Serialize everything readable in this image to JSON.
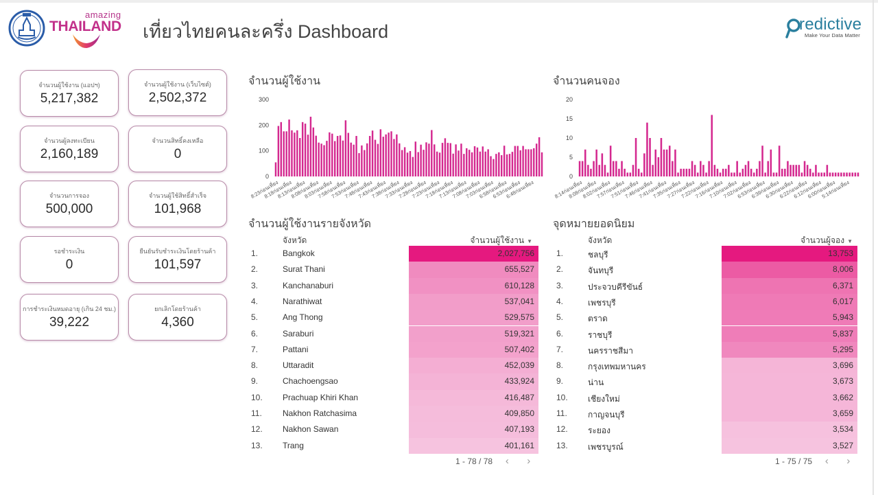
{
  "header": {
    "title": "เที่ยวไทยคนละครึ่ง Dashboard",
    "amazing_small": "amazing",
    "amazing_big": "THAILAND",
    "predictive_name": "redictive",
    "predictive_tagline": "Make Your Data Matter"
  },
  "colors": {
    "accent": "#d81b86",
    "bar": "#d4288f",
    "card_border": "#b78aa8",
    "heat_max": "#e5197f",
    "heat_min": "#f6c3df"
  },
  "kpis": [
    {
      "label": "จำนวนผู้ใช้งาน (แอปฯ)",
      "value": "5,217,382"
    },
    {
      "label": "จำนวนผู้ใช้งาน (เว็บไซต์)",
      "value": "2,502,372"
    },
    {
      "label": "จำนวนผู้ลงทะเบียน",
      "value": "2,160,189"
    },
    {
      "label": "จำนวนสิทธิ์คงเหลือ",
      "value": "0"
    },
    {
      "label": "จำนวนการจอง",
      "value": "500,000"
    },
    {
      "label": "จำนวนผู้ใช้สิทธิ์สำเร็จ",
      "value": "101,968"
    },
    {
      "label": "รอชำระเงิน",
      "value": "0"
    },
    {
      "label": "ยืนยันรับชำระเงินโดยร้านค้า",
      "value": "101,597"
    },
    {
      "label": "การชำระเงินหมดอายุ (เกิน 24 ชม.)",
      "value": "39,222"
    },
    {
      "label": "ยกเลิกโดยร้านค้า",
      "value": "4,360"
    }
  ],
  "chart_data": [
    {
      "type": "bar",
      "title": "จำนวนผู้ใช้งาน",
      "xlabel": "",
      "ylabel": "",
      "ylim": [
        0,
        300
      ],
      "yticks": [
        0,
        100,
        200,
        300
      ],
      "grid": false,
      "xtick_labels": [
        "8:23ก่อนเที่ยง",
        "8:18ก่อนเที่ยง",
        "8:13ก่อนเที่ยง",
        "8:08ก่อนเที่ยง",
        "8:03ก่อนเที่ยง",
        "7:58ก่อนเที่ยง",
        "7:53ก่อนเที่ยง",
        "7:48ก่อนเที่ยง",
        "7:43ก่อนเที่ยง",
        "7:38ก่อนเที่ยง",
        "7:33ก่อนเที่ยง",
        "7:28ก่อนเที่ยง",
        "7:23ก่อนเที่ยง",
        "7:18ก่อนเที่ยง",
        "7:13ก่อนเที่ยง",
        "7:08ก่อนเที่ยง",
        "7:03ก่อนเที่ยง",
        "6:58ก่อนเที่ยง",
        "6:53ก่อนเที่ยง",
        "6:48ก่อนเที่ยง"
      ],
      "values": [
        55,
        197,
        212,
        176,
        176,
        222,
        180,
        171,
        180,
        150,
        212,
        206,
        163,
        233,
        191,
        159,
        132,
        128,
        122,
        139,
        172,
        167,
        138,
        158,
        160,
        140,
        219,
        170,
        132,
        124,
        158,
        91,
        121,
        103,
        129,
        158,
        179,
        143,
        127,
        184,
        155,
        164,
        171,
        176,
        146,
        164,
        129,
        103,
        114,
        93,
        99,
        76,
        136,
        95,
        124,
        104,
        133,
        128,
        181,
        125,
        97,
        93,
        131,
        149,
        131,
        130,
        89,
        125,
        101,
        128,
        88,
        110,
        104,
        94,
        118,
        113,
        97,
        117,
        97,
        106,
        79,
        68,
        88,
        94,
        83,
        120,
        86,
        88,
        96,
        119,
        119,
        102,
        119,
        106,
        106,
        106,
        110,
        128,
        153,
        94
      ]
    },
    {
      "type": "bar",
      "title": "จำนวนคนจอง",
      "xlabel": "",
      "ylabel": "",
      "ylim": [
        0,
        20
      ],
      "yticks": [
        0,
        5,
        10,
        15,
        20
      ],
      "grid": false,
      "xtick_labels": [
        "8:14ก่อนเที่ยง",
        "8:08ก่อนเที่ยง",
        "8:02ก่อนเที่ยง",
        "7:57ก่อนเที่ยง",
        "7:51ก่อนเที่ยง",
        "7:46ก่อนเที่ยง",
        "7:41ก่อนเที่ยง",
        "7:35ก่อนเที่ยง",
        "7:27ก่อนเที่ยง",
        "7:22ก่อนเที่ยง",
        "7:16ก่อนเที่ยง",
        "7:10ก่อนเที่ยง",
        "7:02ก่อนเที่ยง",
        "6:53ก่อนเที่ยง",
        "6:39ก่อนเที่ยง",
        "6:30ก่อนเที่ยง",
        "6:22ก่อนเที่ยง",
        "6:12ก่อนเที่ยง",
        "6:00ก่อนเที่ยง",
        "5:14ก่อนเที่ยง"
      ],
      "values": [
        4,
        4,
        7,
        3,
        2,
        4,
        7,
        3,
        6,
        3,
        1,
        8,
        4,
        4,
        2,
        4,
        2,
        1,
        1,
        3,
        10,
        2,
        1,
        6,
        14,
        10,
        3,
        7,
        5,
        10,
        7,
        7,
        8,
        4,
        7,
        1,
        2,
        2,
        2,
        2,
        4,
        3,
        1,
        4,
        3,
        1,
        4,
        16,
        3,
        2,
        1,
        2,
        2,
        3,
        1,
        1,
        4,
        1,
        2,
        3,
        4,
        2,
        1,
        2,
        4,
        8,
        1,
        4,
        7,
        1,
        1,
        8,
        2,
        2,
        4,
        3,
        3,
        3,
        3,
        1,
        4,
        3,
        2,
        1,
        3,
        1,
        1,
        1,
        3,
        1,
        1,
        1,
        1,
        1,
        1,
        1,
        1,
        1,
        1,
        1
      ]
    }
  ],
  "province_users": {
    "title": "จำนวนผู้ใช้งานรายจังหวัด",
    "col_province": "จังหวัด",
    "col_value": "จำนวนผู้ใช้งาน",
    "rows": [
      {
        "idx": "1.",
        "name": "Bangkok",
        "value": "2,027,756",
        "num": 2027756
      },
      {
        "idx": "2.",
        "name": "Surat Thani",
        "value": "655,527",
        "num": 655527
      },
      {
        "idx": "3.",
        "name": "Kanchanaburi",
        "value": "610,128",
        "num": 610128
      },
      {
        "idx": "4.",
        "name": "Narathiwat",
        "value": "537,041",
        "num": 537041
      },
      {
        "idx": "5.",
        "name": "Ang Thong",
        "value": "529,575",
        "num": 529575
      },
      {
        "idx": "6.",
        "name": "Saraburi",
        "value": "519,321",
        "num": 519321
      },
      {
        "idx": "7.",
        "name": "Pattani",
        "value": "507,402",
        "num": 507402
      },
      {
        "idx": "8.",
        "name": "Uttaradit",
        "value": "452,039",
        "num": 452039
      },
      {
        "idx": "9.",
        "name": "Chachoengsao",
        "value": "433,924",
        "num": 433924
      },
      {
        "idx": "10.",
        "name": "Prachuap Khiri Khan",
        "value": "416,487",
        "num": 416487
      },
      {
        "idx": "11.",
        "name": "Nakhon Ratchasima",
        "value": "409,850",
        "num": 409850
      },
      {
        "idx": "12.",
        "name": "Nakhon Sawan",
        "value": "407,193",
        "num": 407193
      },
      {
        "idx": "13.",
        "name": "Trang",
        "value": "401,161",
        "num": 401161
      }
    ],
    "pagination": "1 - 78 / 78"
  },
  "popular_destinations": {
    "title": "จุดหมายยอดนิยม",
    "col_province": "จังหวัด",
    "col_value": "จำนวนผู้จอง",
    "rows": [
      {
        "idx": "1.",
        "name": "ชลบุรี",
        "value": "13,753",
        "num": 13753
      },
      {
        "idx": "2.",
        "name": "จันทบุรี",
        "value": "8,006",
        "num": 8006
      },
      {
        "idx": "3.",
        "name": "ประจวบคีรีขันธ์",
        "value": "6,371",
        "num": 6371
      },
      {
        "idx": "4.",
        "name": "เพชรบุรี",
        "value": "6,017",
        "num": 6017
      },
      {
        "idx": "5.",
        "name": "ตราด",
        "value": "5,943",
        "num": 5943
      },
      {
        "idx": "6.",
        "name": "ราชบุรี",
        "value": "5,837",
        "num": 5837
      },
      {
        "idx": "7.",
        "name": "นครราชสีมา",
        "value": "5,295",
        "num": 5295
      },
      {
        "idx": "8.",
        "name": "กรุงเทพมหานคร",
        "value": "3,696",
        "num": 3696
      },
      {
        "idx": "9.",
        "name": "น่าน",
        "value": "3,673",
        "num": 3673
      },
      {
        "idx": "10.",
        "name": "เชียงใหม่",
        "value": "3,662",
        "num": 3662
      },
      {
        "idx": "11.",
        "name": "กาญจนบุรี",
        "value": "3,659",
        "num": 3659
      },
      {
        "idx": "12.",
        "name": "ระยอง",
        "value": "3,534",
        "num": 3534
      },
      {
        "idx": "13.",
        "name": "เพชรบูรณ์",
        "value": "3,527",
        "num": 3527
      }
    ],
    "pagination": "1 - 75 / 75"
  },
  "pager_icons": {
    "prev": "‹",
    "next": "›",
    "sort": "▼"
  }
}
